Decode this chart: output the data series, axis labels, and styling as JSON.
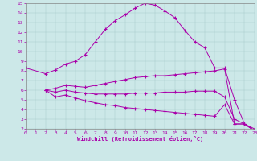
{
  "xlabel": "Windchill (Refroidissement éolien,°C)",
  "bg_color": "#cce8e8",
  "line_color": "#aa00aa",
  "xlim": [
    0,
    23
  ],
  "ylim": [
    2,
    15
  ],
  "xticks": [
    0,
    1,
    2,
    3,
    4,
    5,
    6,
    7,
    8,
    9,
    10,
    11,
    12,
    13,
    14,
    15,
    16,
    17,
    18,
    19,
    20,
    21,
    22,
    23
  ],
  "yticks": [
    2,
    3,
    4,
    5,
    6,
    7,
    8,
    9,
    10,
    11,
    12,
    13,
    14,
    15
  ],
  "curve1_x": [
    0,
    2,
    3,
    4,
    5,
    6,
    7,
    8,
    9,
    10,
    11,
    12,
    13,
    14,
    15,
    16,
    17,
    18,
    19,
    20,
    21,
    22,
    23
  ],
  "curve1_y": [
    8.3,
    7.7,
    8.1,
    8.7,
    9.0,
    9.7,
    11.0,
    12.3,
    13.2,
    13.8,
    14.5,
    15.0,
    14.8,
    14.2,
    13.5,
    12.2,
    11.0,
    10.4,
    8.3,
    8.3,
    5.0,
    2.5,
    2.0
  ],
  "curve2_full_x": [
    2,
    3,
    4,
    5,
    6,
    7,
    8,
    9,
    10,
    11,
    12,
    13,
    14,
    15,
    16,
    17,
    18,
    19,
    20,
    21,
    22,
    23
  ],
  "curve2_full_y": [
    6.0,
    6.2,
    6.5,
    6.4,
    6.3,
    6.5,
    6.7,
    6.9,
    7.1,
    7.3,
    7.4,
    7.5,
    7.5,
    7.6,
    7.7,
    7.8,
    7.9,
    8.0,
    8.2,
    2.5,
    2.5,
    1.8
  ],
  "curve3_full_x": [
    2,
    3,
    4,
    5,
    6,
    7,
    8,
    9,
    10,
    11,
    12,
    13,
    14,
    15,
    16,
    17,
    18,
    19,
    20,
    21,
    22,
    23
  ],
  "curve3_full_y": [
    6.0,
    5.8,
    6.0,
    5.8,
    5.7,
    5.6,
    5.6,
    5.6,
    5.6,
    5.7,
    5.7,
    5.7,
    5.8,
    5.8,
    5.8,
    5.9,
    5.9,
    5.9,
    5.3,
    3.0,
    2.5,
    1.8
  ],
  "curve4_full_x": [
    2,
    3,
    4,
    5,
    6,
    7,
    8,
    9,
    10,
    11,
    12,
    13,
    14,
    15,
    16,
    17,
    18,
    19,
    20,
    21,
    22,
    23
  ],
  "curve4_full_y": [
    6.0,
    5.3,
    5.5,
    5.2,
    4.9,
    4.7,
    4.5,
    4.4,
    4.2,
    4.1,
    4.0,
    3.9,
    3.8,
    3.7,
    3.6,
    3.5,
    3.4,
    3.3,
    4.5,
    2.5,
    2.5,
    1.8
  ]
}
